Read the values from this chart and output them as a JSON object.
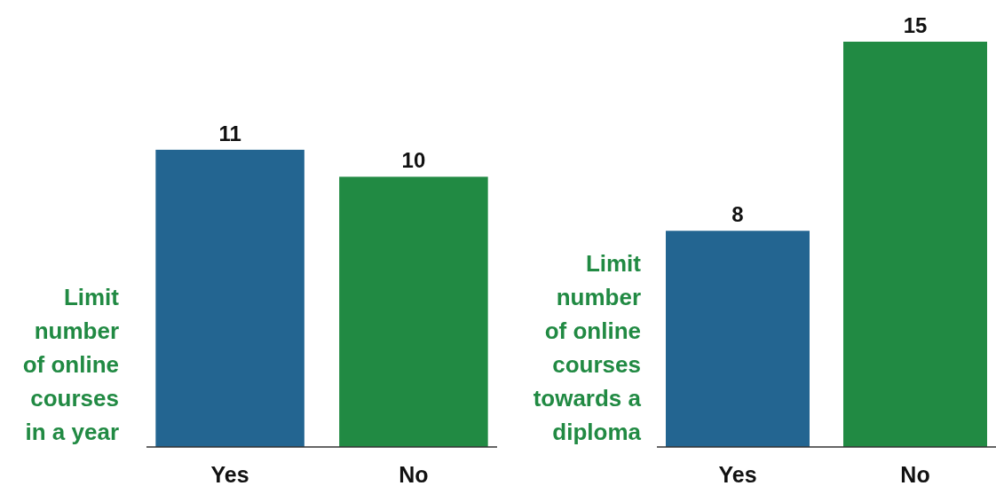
{
  "chart_data": [
    {
      "type": "bar",
      "ylabel": "Limit\nnumber\nof online\ncourses\nin a year",
      "categories": [
        "Yes",
        "No"
      ],
      "values": [
        11,
        10
      ],
      "colors": [
        "#236591",
        "#218a43"
      ],
      "data_labels": true
    },
    {
      "type": "bar",
      "ylabel": "Limit\nnumber\nof online\ncourses\ntowards a\ndiploma",
      "categories": [
        "Yes",
        "No"
      ],
      "values": [
        8,
        15
      ],
      "colors": [
        "#236591",
        "#218a43"
      ],
      "data_labels": true
    }
  ]
}
